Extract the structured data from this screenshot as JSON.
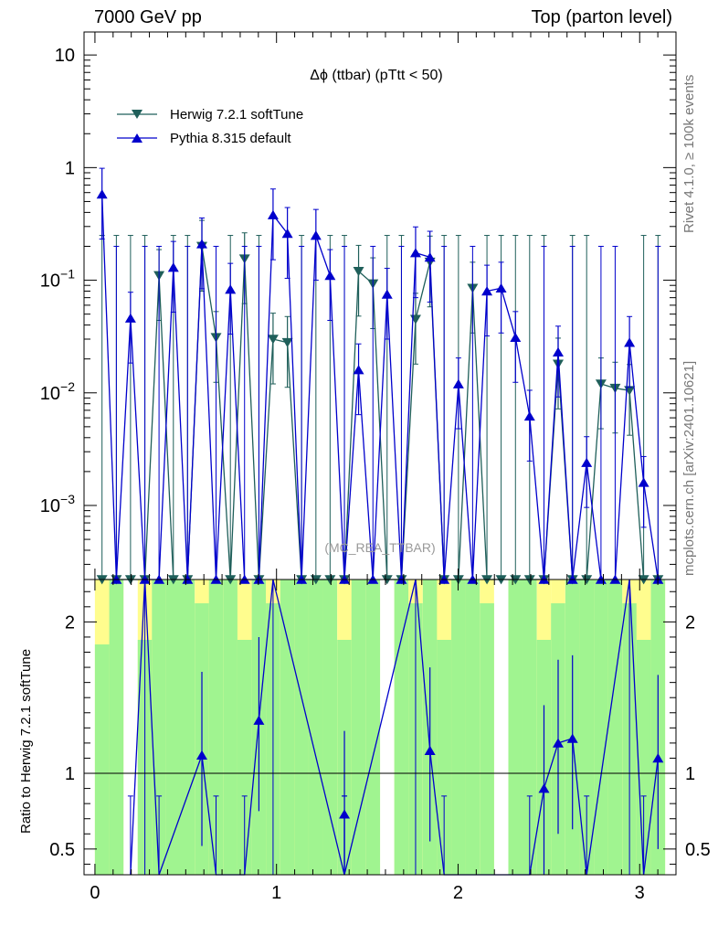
{
  "header": {
    "left": "7000 GeV pp",
    "right": "Top (parton level)"
  },
  "side_labels": {
    "rivet": "Rivet 4.1.0, ≥ 100k events",
    "mcplots": "mcplots.cern.ch [arXiv:2401.10621]"
  },
  "chart_data": {
    "type": "line",
    "title": "Δϕ (ttbar) (pTtt < 50)",
    "watermark": "(MC_REA_TTBAR)",
    "x_range": [
      -0.06,
      3.2
    ],
    "x_ticks": [
      "0",
      "1",
      "2",
      "3"
    ],
    "main_y_scale": "log",
    "main_y_range": [
      0.00022,
      16
    ],
    "main_y_ticks": [
      {
        "base": "10",
        "exp": "",
        "value": 10
      },
      {
        "base": "1",
        "exp": "",
        "value": 1
      },
      {
        "base": "10",
        "exp": "−1",
        "value": 0.1
      },
      {
        "base": "10",
        "exp": "−2",
        "value": 0.01
      },
      {
        "base": "10",
        "exp": "−3",
        "value": 0.001
      }
    ],
    "series": [
      {
        "name": "Herwig 7.2.1 softTune",
        "color": "#1f5f5a",
        "marker": "triangle-down",
        "points": [
          [
            0.039,
            null
          ],
          [
            0.118,
            null
          ],
          [
            0.196,
            null
          ],
          [
            0.275,
            null
          ],
          [
            0.353,
            0.11
          ],
          [
            0.432,
            null
          ],
          [
            0.51,
            null
          ],
          [
            0.589,
            0.2
          ],
          [
            0.667,
            0.031
          ],
          [
            0.746,
            null
          ],
          [
            0.824,
            0.155
          ],
          [
            0.903,
            null
          ],
          [
            0.981,
            0.03
          ],
          [
            1.06,
            0.028
          ],
          [
            1.138,
            null
          ],
          [
            1.217,
            null
          ],
          [
            1.295,
            null
          ],
          [
            1.374,
            null
          ],
          [
            1.452,
            0.12
          ],
          [
            1.531,
            0.093
          ],
          [
            1.609,
            null
          ],
          [
            1.688,
            null
          ],
          [
            1.766,
            0.045
          ],
          [
            1.845,
            0.145
          ],
          [
            1.923,
            null
          ],
          [
            2.002,
            null
          ],
          [
            2.08,
            0.085
          ],
          [
            2.159,
            null
          ],
          [
            2.237,
            null
          ],
          [
            2.316,
            null
          ],
          [
            2.394,
            null
          ],
          [
            2.473,
            null
          ],
          [
            2.551,
            0.018
          ],
          [
            2.63,
            null
          ],
          [
            2.708,
            null
          ],
          [
            2.787,
            0.012
          ],
          [
            2.865,
            0.011
          ],
          [
            2.944,
            0.0105
          ],
          [
            3.022,
            null
          ],
          [
            3.101,
            null
          ]
        ]
      },
      {
        "name": "Pythia 8.315 default",
        "color": "#0000cc",
        "marker": "triangle-up",
        "points": [
          [
            0.039,
            0.58
          ],
          [
            0.118,
            null
          ],
          [
            0.196,
            0.046
          ],
          [
            0.275,
            null
          ],
          [
            0.353,
            null
          ],
          [
            0.432,
            0.13
          ],
          [
            0.51,
            null
          ],
          [
            0.589,
            0.21
          ],
          [
            0.667,
            null
          ],
          [
            0.746,
            0.083
          ],
          [
            0.824,
            null
          ],
          [
            0.903,
            null
          ],
          [
            0.981,
            0.38
          ],
          [
            1.06,
            0.26
          ],
          [
            1.138,
            null
          ],
          [
            1.217,
            0.25
          ],
          [
            1.295,
            0.11
          ],
          [
            1.374,
            null
          ],
          [
            1.452,
            0.016
          ],
          [
            1.531,
            null
          ],
          [
            1.609,
            0.075
          ],
          [
            1.688,
            null
          ],
          [
            1.766,
            0.175
          ],
          [
            1.845,
            0.16
          ],
          [
            1.923,
            null
          ],
          [
            2.002,
            0.012
          ],
          [
            2.08,
            null
          ],
          [
            2.159,
            0.08
          ],
          [
            2.237,
            0.085
          ],
          [
            2.316,
            0.031
          ],
          [
            2.394,
            0.0062
          ],
          [
            2.473,
            null
          ],
          [
            2.551,
            0.023
          ],
          [
            2.63,
            null
          ],
          [
            2.708,
            0.0024
          ],
          [
            2.787,
            null
          ],
          [
            2.865,
            null
          ],
          [
            2.944,
            0.028
          ],
          [
            3.022,
            0.0016
          ],
          [
            3.101,
            null
          ]
        ]
      }
    ],
    "ratio": {
      "ylabel": "Ratio to Herwig 7.2.1 softTune",
      "y_range": [
        0.33,
        2.28
      ],
      "y_ticks": [
        "0.5",
        "1",
        "2"
      ],
      "y_tick_values": [
        0.5,
        1,
        2
      ],
      "pythia_values": [
        [
          0.196,
          0.1
        ],
        [
          0.275,
          2.3
        ],
        [
          0.353,
          0.1
        ],
        [
          0.589,
          1.12
        ],
        [
          0.667,
          0.1
        ],
        [
          0.824,
          0.1
        ],
        [
          0.903,
          1.35
        ],
        [
          0.981,
          2.3
        ],
        [
          1.374,
          0.1
        ],
        [
          1.374,
          0.73
        ],
        [
          1.374,
          0.1
        ],
        [
          1.766,
          2.3
        ],
        [
          1.845,
          1.15
        ],
        [
          1.923,
          0.1
        ],
        [
          2.394,
          0.1
        ],
        [
          2.473,
          0.9
        ],
        [
          2.551,
          1.2
        ],
        [
          2.63,
          1.23
        ],
        [
          2.708,
          0.1
        ],
        [
          2.944,
          2.3
        ],
        [
          3.022,
          0.1
        ],
        [
          3.101,
          1.1
        ]
      ],
      "band_colors": {
        "inner": "#a0f490",
        "outer": "#fffd8e"
      }
    }
  }
}
